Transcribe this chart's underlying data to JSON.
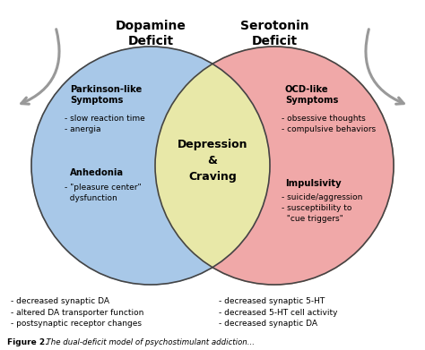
{
  "title_left": "Dopamine\nDeficit",
  "title_right": "Serotonin\nDeficit",
  "circle_left_color": "#a8c8e8",
  "circle_right_color": "#e8e8a8",
  "circle_overlap_color": "#f0a8a8",
  "left_bold_1": "Parkinson-like\nSymptoms",
  "left_text_1": "- slow reaction time\n- anergia",
  "left_bold_2": "Anhedonia",
  "left_text_2": "- \"pleasure center\"\n  dysfunction",
  "center_text": "Depression\n&\nCraving",
  "right_bold_1": "OCD-like\nSymptoms",
  "right_text_1": "- obsessive thoughts\n- compulsive behaviors",
  "right_bold_2": "Impulsivity",
  "right_text_2": "- suicide/aggression\n- susceptibility to\n  \"cue triggers\"",
  "bottom_left_text": "- decreased synaptic DA\n- altered DA transporter function\n- postsynaptic receptor changes",
  "bottom_right_text": "- decreased synaptic 5-HT\n- decreased 5-HT cell activity\n- decreased synaptic DA",
  "caption_bold": "Figure 2.",
  "caption_italic": "  The dual-deficit model of psychostimulant addiction...",
  "bg_color": "#ffffff",
  "text_color": "#000000",
  "arrow_color": "#999999",
  "edge_color": "#444444"
}
